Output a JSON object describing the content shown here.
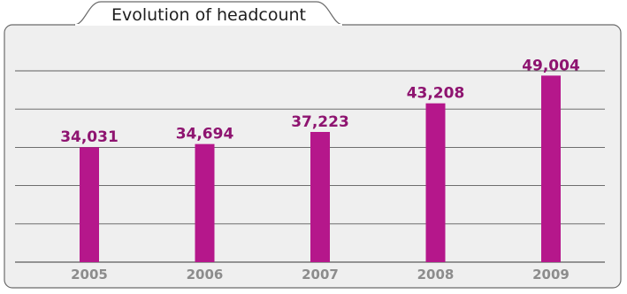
{
  "colors": {
    "panel_fill": "#efefef",
    "panel_stroke": "#6b6b6b",
    "title_tab_fill": "#ffffff",
    "bar": "#b5178b",
    "value_label": "#8e1470",
    "tick_label": "#8c8c8c",
    "gridline": "#5c5c5c"
  },
  "chart_data": {
    "type": "bar",
    "title": "Evolution of headcount",
    "xlabel": "",
    "ylabel": "",
    "categories": [
      "2005",
      "2006",
      "2007",
      "2008",
      "2009"
    ],
    "values": [
      34031,
      34694,
      37223,
      43208,
      49004
    ],
    "value_labels": [
      "34,031",
      "34,694",
      "37,223",
      "43,208",
      "49,004"
    ],
    "ylim": [
      10000,
      50000
    ],
    "grid": true,
    "legend": "none"
  }
}
